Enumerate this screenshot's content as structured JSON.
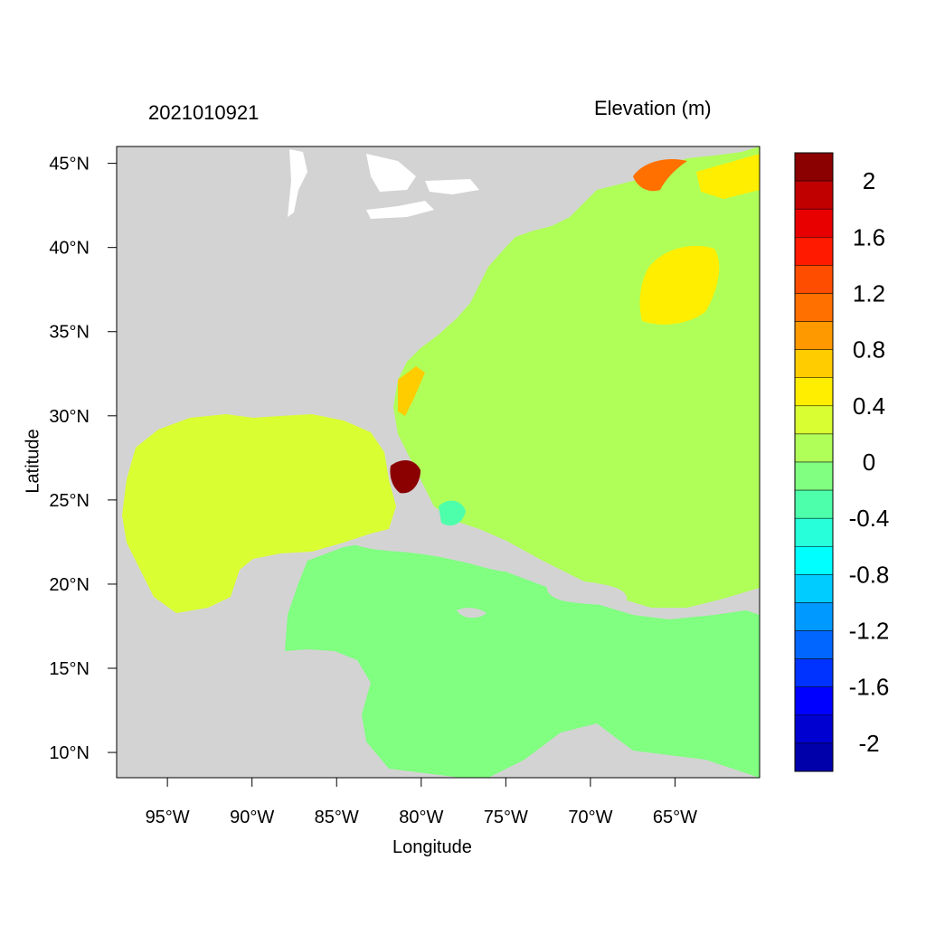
{
  "map": {
    "datestamp": "2021010921",
    "variable_title": "Elevation (m)",
    "xlabel": "Longitude",
    "ylabel": "Latitude",
    "lon_range": [
      -98,
      -60
    ],
    "lat_range": [
      8.5,
      46
    ],
    "lon_ticks": [
      {
        "value": -95,
        "label": "95°W"
      },
      {
        "value": -90,
        "label": "90°W"
      },
      {
        "value": -85,
        "label": "85°W"
      },
      {
        "value": -80,
        "label": "80°W"
      },
      {
        "value": -75,
        "label": "75°W"
      },
      {
        "value": -70,
        "label": "70°W"
      },
      {
        "value": -65,
        "label": "65°W"
      }
    ],
    "lat_ticks": [
      {
        "value": 45,
        "label": "45°N"
      },
      {
        "value": 40,
        "label": "40°N"
      },
      {
        "value": 35,
        "label": "35°N"
      },
      {
        "value": 30,
        "label": "30°N"
      },
      {
        "value": 25,
        "label": "25°N"
      },
      {
        "value": 20,
        "label": "20°N"
      },
      {
        "value": 15,
        "label": "15°N"
      },
      {
        "value": 10,
        "label": "10°N"
      }
    ],
    "colors": {
      "land": "#d3d3d3",
      "caribbean": "#80ff80",
      "gulf": "#d9ff33",
      "atlantic": "#b0ff59",
      "high": "#ffee00",
      "coast_surge": "#8b0000"
    }
  },
  "colorbar": {
    "colors": [
      "#8b0000",
      "#c00000",
      "#e80000",
      "#ff1a00",
      "#ff4d00",
      "#ff7000",
      "#ff9900",
      "#ffcc00",
      "#ffee00",
      "#d9ff33",
      "#b0ff59",
      "#80ff80",
      "#4dffaa",
      "#26ffd9",
      "#00ffff",
      "#00ccff",
      "#0099ff",
      "#0066ff",
      "#0033ff",
      "#0000ff",
      "#0000d0",
      "#0000aa"
    ],
    "labels": [
      "2",
      "1.6",
      "1.2",
      "0.8",
      "0.4",
      "0",
      "-0.4",
      "-0.8",
      "-1.2",
      "-1.6",
      "-2"
    ]
  }
}
